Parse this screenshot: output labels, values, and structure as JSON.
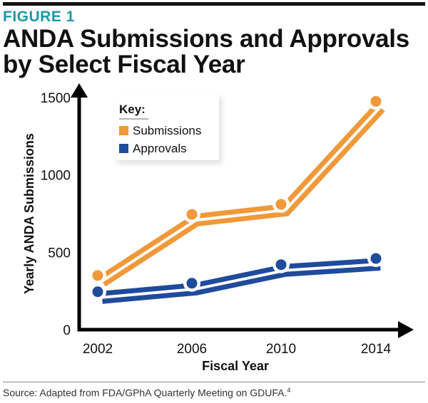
{
  "header": {
    "figure_label": "FIGURE 1",
    "title_line1": "ANDA Submissions and Approvals",
    "title_line2": "by Select Fiscal Year"
  },
  "chart_data": {
    "type": "line",
    "title": "ANDA Submissions and Approvals by Select Fiscal Year",
    "xlabel": "Fiscal Year",
    "ylabel": "Yearly ANDA Submissions",
    "categories": [
      "2002",
      "2006",
      "2010",
      "2014"
    ],
    "yticks": [
      0,
      500,
      1000,
      1500
    ],
    "ylim": [
      0,
      1500
    ],
    "grid": false,
    "legend": {
      "title": "Key:",
      "position": "top-left"
    },
    "series": [
      {
        "name": "Submissions",
        "color": "#f0993a",
        "values": [
          350,
          745,
          810,
          1475
        ]
      },
      {
        "name": "Approvals",
        "color": "#1f4b9b",
        "values": [
          245,
          300,
          420,
          460
        ]
      }
    ]
  },
  "footer": {
    "source": "Source: Adapted from FDA/GPhA Quarterly Meeting on GDUFA.",
    "footnote_ref": "4"
  }
}
